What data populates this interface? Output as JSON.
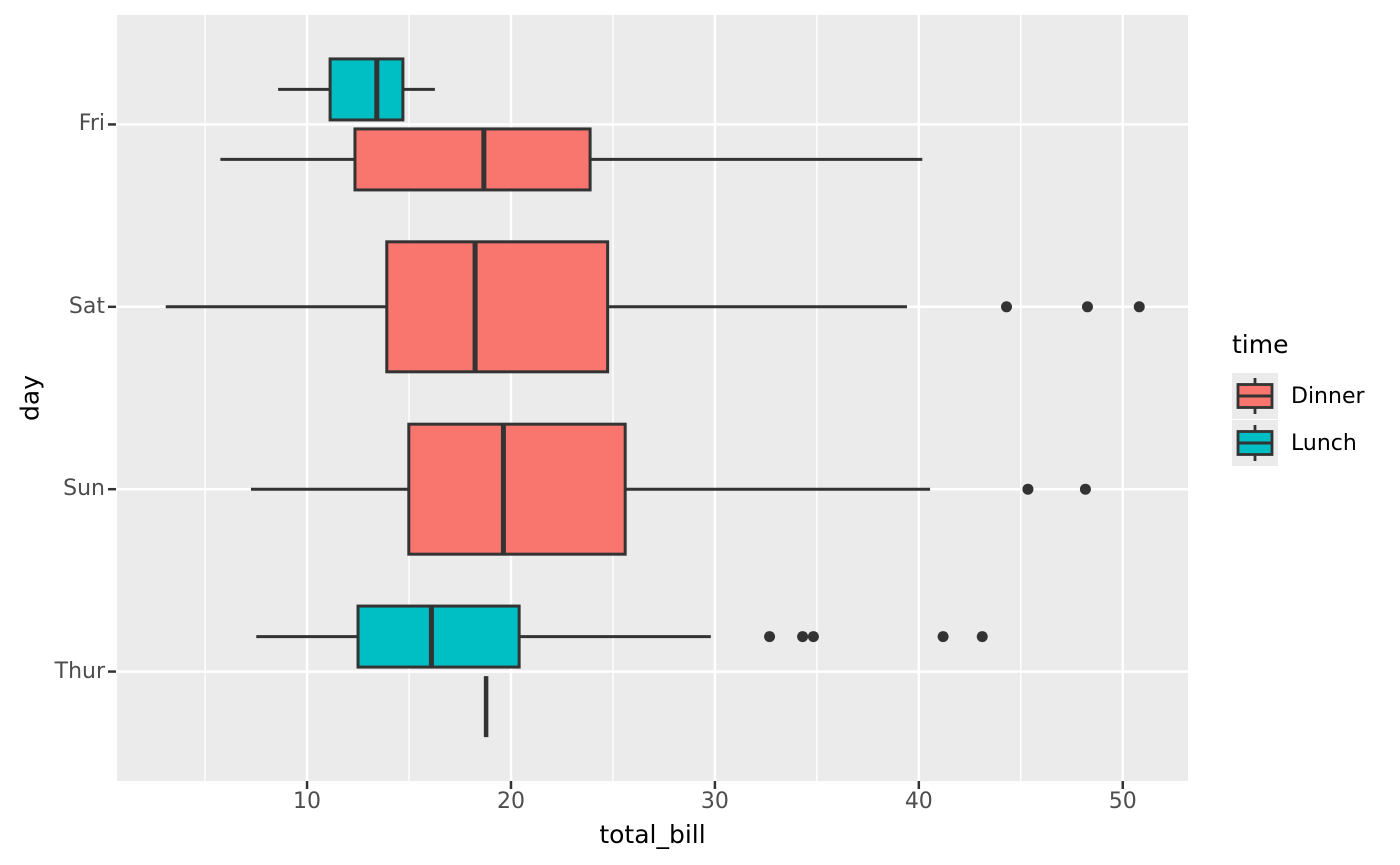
{
  "figure": {
    "background": "#FFFFFF",
    "panel_background": "#EBEBEB",
    "grid_color": "#FFFFFF",
    "box_outline_color": "#333333",
    "outlier_color": "#333333",
    "tick_mark_color": "#333333",
    "tick_label_color": "#4D4D4D",
    "axis_title_color": "#000000"
  },
  "chart_data": {
    "type": "boxplot",
    "orientation": "horizontal",
    "title": "",
    "xlabel": "total_bill",
    "ylabel": "day",
    "categories": [
      "Fri",
      "Sat",
      "Sun",
      "Thur"
    ],
    "x_ticks": [
      10,
      20,
      30,
      40,
      50
    ],
    "x_minor_gridlines": [
      5,
      15,
      25,
      35,
      45
    ],
    "xlim": [
      0.68,
      53.2
    ],
    "grid": true,
    "legend": {
      "title": "time",
      "position": "right",
      "entries": [
        {
          "label": "Dinner",
          "color": "#F8766D"
        },
        {
          "label": "Lunch",
          "color": "#00BFC4"
        }
      ]
    },
    "series": [
      {
        "name": "Lunch",
        "color": "#00BFC4",
        "boxes": [
          {
            "category": "Fri",
            "slot": "upper",
            "whisker_low": 8.58,
            "q1": 11.13,
            "median": 13.42,
            "q3": 14.7,
            "whisker_high": 16.27,
            "outliers": []
          },
          {
            "category": "Thur",
            "slot": "upper",
            "whisker_low": 7.51,
            "q1": 12.5,
            "median": 16.1,
            "q3": 20.4,
            "whisker_high": 29.8,
            "outliers": [
              32.68,
              34.3,
              34.83,
              41.19,
              43.11
            ]
          }
        ]
      },
      {
        "name": "Dinner",
        "color": "#F8766D",
        "boxes": [
          {
            "category": "Fri",
            "slot": "lower",
            "whisker_low": 5.75,
            "q1": 12.35,
            "median": 18.67,
            "q3": 23.88,
            "whisker_high": 40.17,
            "outliers": []
          },
          {
            "category": "Sat",
            "slot": "full",
            "whisker_low": 3.07,
            "q1": 13.91,
            "median": 18.24,
            "q3": 24.74,
            "whisker_high": 39.42,
            "outliers": [
              44.3,
              48.27,
              50.81
            ]
          },
          {
            "category": "Sun",
            "slot": "full",
            "whisker_low": 7.25,
            "q1": 14.99,
            "median": 19.63,
            "q3": 25.6,
            "whisker_high": 40.55,
            "outliers": [
              45.35,
              48.17
            ]
          },
          {
            "category": "Thur",
            "slot": "lower",
            "whisker_low": 18.78,
            "q1": 18.78,
            "median": 18.78,
            "q3": 18.78,
            "whisker_high": 18.78,
            "outliers": [],
            "single_value": true
          }
        ]
      }
    ]
  }
}
